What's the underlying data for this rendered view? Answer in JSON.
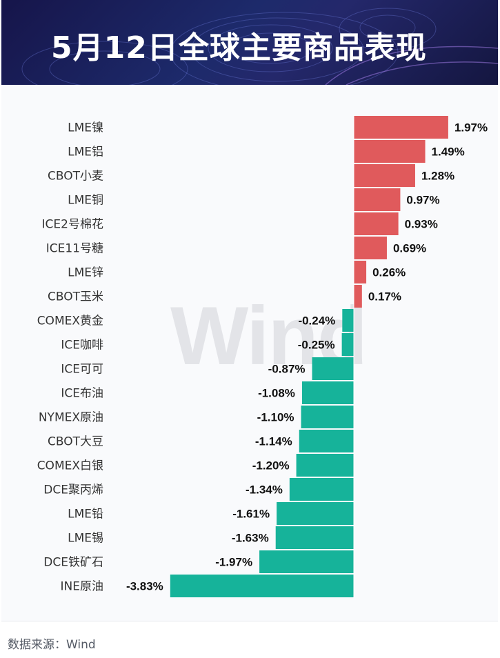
{
  "header": {
    "title": "5月12日全球主要商品表现"
  },
  "watermark": "Wind",
  "source_text": "数据来源：Wind",
  "colors": {
    "positive": "#e05a5c",
    "negative": "#16b39a"
  },
  "chart_data": {
    "type": "bar",
    "orientation": "horizontal",
    "title": "5月12日全球主要商品表现",
    "xlabel": "",
    "ylabel": "",
    "unit": "%",
    "categories": [
      "LME镍",
      "LME铝",
      "CBOT小麦",
      "LME铜",
      "ICE2号棉花",
      "ICE11号糖",
      "LME锌",
      "CBOT玉米",
      "COMEX黄金",
      "ICE咖啡",
      "ICE可可",
      "ICE布油",
      "NYMEX原油",
      "CBOT大豆",
      "COMEX白银",
      "DCE聚丙烯",
      "LME铅",
      "LME锡",
      "DCE铁矿石",
      "INE原油"
    ],
    "values": [
      1.97,
      1.49,
      1.28,
      0.97,
      0.93,
      0.69,
      0.26,
      0.17,
      -0.24,
      -0.25,
      -0.87,
      -1.08,
      -1.1,
      -1.14,
      -1.2,
      -1.34,
      -1.61,
      -1.63,
      -1.97,
      -3.83
    ],
    "value_labels": [
      "1.97%",
      "1.49%",
      "1.28%",
      "0.97%",
      "0.93%",
      "0.69%",
      "0.26%",
      "0.17%",
      "-0.24%",
      "-0.25%",
      "-0.87%",
      "-1.08%",
      "-1.10%",
      "-1.14%",
      "-1.20%",
      "-1.34%",
      "-1.61%",
      "-1.63%",
      "-1.97%",
      "-3.83%"
    ],
    "grid": false,
    "legend": "none"
  }
}
